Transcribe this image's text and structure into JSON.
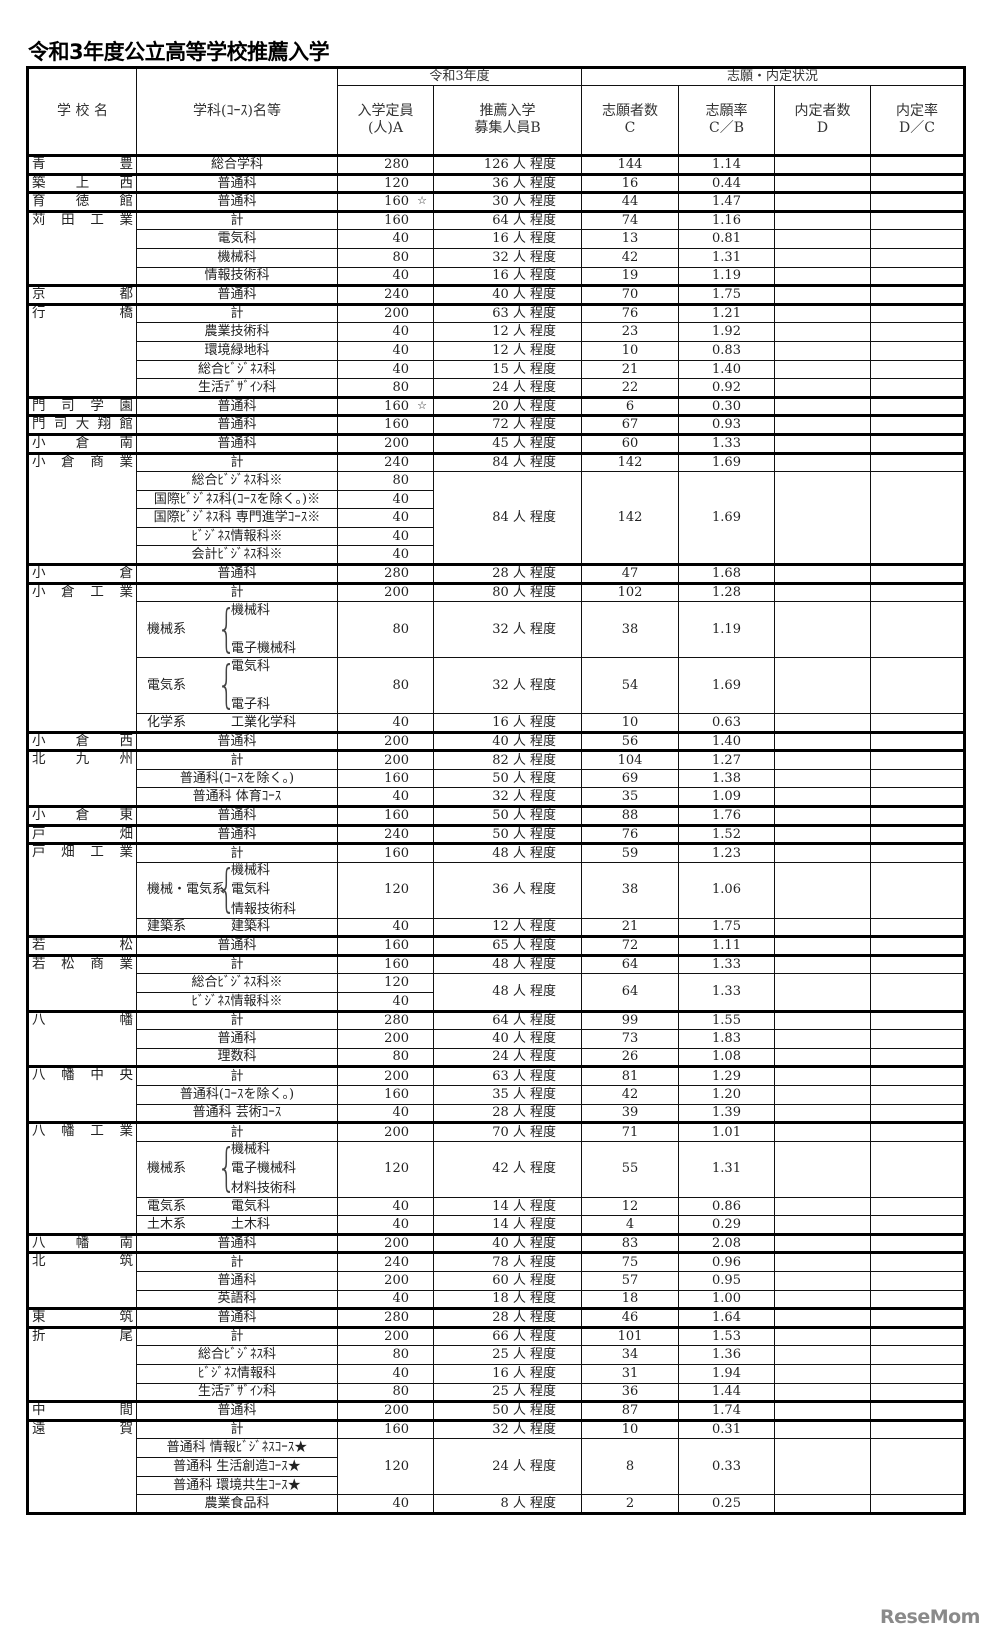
{
  "title": "令和3年度公立高等学校推薦入学",
  "header": {
    "group_year": "令和3年度",
    "group_status": "志願・内定状況",
    "school": "学 校 名",
    "dept": "学科(ｺｰｽ)名等",
    "capacity": [
      "入学定員",
      "(人)A"
    ],
    "recruit": [
      "推薦入学",
      "募集人員B"
    ],
    "applicants": [
      "志願者数",
      "C"
    ],
    "rate": [
      "志願率",
      "C／B"
    ],
    "offers": [
      "内定者数",
      "D"
    ],
    "offer_rate": [
      "内定率",
      "D／C"
    ]
  },
  "schools": [
    {
      "name": "青豊",
      "rows": [
        {
          "dept": "総合学科",
          "capacity": "280",
          "recruit": "126 人 程度",
          "applicants": "144",
          "rate": "1.14"
        }
      ]
    },
    {
      "name": "築上西",
      "rows": [
        {
          "dept": "普通科",
          "capacity": "120",
          "recruit": "36 人 程度",
          "applicants": "16",
          "rate": "0.44"
        }
      ]
    },
    {
      "name": "育徳館",
      "rows": [
        {
          "dept": "普通科",
          "capacity": "160",
          "mark": "☆",
          "recruit": "30 人 程度",
          "applicants": "44",
          "rate": "1.47"
        }
      ]
    },
    {
      "name": "苅田工業",
      "rows": [
        {
          "dept": "計",
          "capacity": "160",
          "recruit": "64 人 程度",
          "applicants": "74",
          "rate": "1.16"
        },
        {
          "dept": "電気科",
          "capacity": "40",
          "recruit": "16 人 程度",
          "applicants": "13",
          "rate": "0.81"
        },
        {
          "dept": "機械科",
          "capacity": "80",
          "recruit": "32 人 程度",
          "applicants": "42",
          "rate": "1.31"
        },
        {
          "dept": "情報技術科",
          "capacity": "40",
          "recruit": "16 人 程度",
          "applicants": "19",
          "rate": "1.19"
        }
      ]
    },
    {
      "name": "京都",
      "rows": [
        {
          "dept": "普通科",
          "capacity": "240",
          "recruit": "40 人 程度",
          "applicants": "70",
          "rate": "1.75"
        }
      ]
    },
    {
      "name": "行橋",
      "rows": [
        {
          "dept": "計",
          "capacity": "200",
          "recruit": "63 人 程度",
          "applicants": "76",
          "rate": "1.21"
        },
        {
          "dept": "農業技術科",
          "capacity": "40",
          "recruit": "12 人 程度",
          "applicants": "23",
          "rate": "1.92"
        },
        {
          "dept": "環境緑地科",
          "capacity": "40",
          "recruit": "12 人 程度",
          "applicants": "10",
          "rate": "0.83"
        },
        {
          "dept": "総合ﾋﾞｼﾞﾈｽ科",
          "capacity": "40",
          "recruit": "15 人 程度",
          "applicants": "21",
          "rate": "1.40"
        },
        {
          "dept": "生活ﾃﾞｻﾞｲﾝ科",
          "capacity": "80",
          "recruit": "24 人 程度",
          "applicants": "22",
          "rate": "0.92"
        }
      ]
    },
    {
      "name": "門司学園",
      "rows": [
        {
          "dept": "普通科",
          "capacity": "160",
          "mark": "☆",
          "recruit": "20 人 程度",
          "applicants": "6",
          "rate": "0.30"
        }
      ]
    },
    {
      "name": "門司大翔館",
      "rows": [
        {
          "dept": "普通科",
          "capacity": "160",
          "recruit": "72 人 程度",
          "applicants": "67",
          "rate": "0.93"
        }
      ]
    },
    {
      "name": "小倉南",
      "rows": [
        {
          "dept": "普通科",
          "capacity": "200",
          "recruit": "45 人 程度",
          "applicants": "60",
          "rate": "1.33"
        }
      ]
    },
    {
      "name": "小倉商業",
      "rows": [
        {
          "dept": "計",
          "capacity": "240",
          "recruit": "84 人 程度",
          "applicants": "142",
          "rate": "1.69"
        },
        {
          "merged": true,
          "depts": [
            {
              "dept": "総合ﾋﾞｼﾞﾈｽ科※",
              "capacity": "80"
            },
            {
              "dept": "国際ﾋﾞｼﾞﾈｽ科(ｺｰｽを除く。)※",
              "capacity": "40"
            },
            {
              "dept": "国際ﾋﾞｼﾞﾈｽ科 専門進学ｺｰｽ※",
              "capacity": "40"
            },
            {
              "dept": "ﾋﾞｼﾞﾈｽ情報科※",
              "capacity": "40"
            },
            {
              "dept": "会計ﾋﾞｼﾞﾈｽ科※",
              "capacity": "40"
            }
          ],
          "recruit": "84 人 程度",
          "applicants": "142",
          "rate": "1.69"
        }
      ]
    },
    {
      "name": "小倉",
      "rows": [
        {
          "dept": "普通科",
          "capacity": "280",
          "recruit": "28 人 程度",
          "applicants": "47",
          "rate": "1.68"
        }
      ]
    },
    {
      "name": "小倉工業",
      "rows": [
        {
          "dept": "計",
          "capacity": "200",
          "recruit": "80 人 程度",
          "applicants": "102",
          "rate": "1.28"
        },
        {
          "group": "機械系",
          "items": [
            "機械科",
            "電子機械科"
          ],
          "capacity": "80",
          "recruit": "32 人 程度",
          "applicants": "38",
          "rate": "1.19"
        },
        {
          "group": "電気系",
          "items": [
            "電気科",
            "電子科"
          ],
          "capacity": "80",
          "recruit": "32 人 程度",
          "applicants": "54",
          "rate": "1.69"
        },
        {
          "group": "化学系",
          "items": [
            "工業化学科"
          ],
          "capacity": "40",
          "recruit": "16 人 程度",
          "applicants": "10",
          "rate": "0.63"
        }
      ]
    },
    {
      "name": "小倉西",
      "rows": [
        {
          "dept": "普通科",
          "capacity": "200",
          "recruit": "40 人 程度",
          "applicants": "56",
          "rate": "1.40"
        }
      ]
    },
    {
      "name": "北九州",
      "rows": [
        {
          "dept": "計",
          "capacity": "200",
          "recruit": "82 人 程度",
          "applicants": "104",
          "rate": "1.27"
        },
        {
          "dept": "普通科(ｺｰｽを除く。)",
          "capacity": "160",
          "recruit": "50 人 程度",
          "applicants": "69",
          "rate": "1.38"
        },
        {
          "dept": "普通科 体育ｺｰｽ",
          "capacity": "40",
          "recruit": "32 人 程度",
          "applicants": "35",
          "rate": "1.09"
        }
      ]
    },
    {
      "name": "小倉東",
      "rows": [
        {
          "dept": "普通科",
          "capacity": "160",
          "recruit": "50 人 程度",
          "applicants": "88",
          "rate": "1.76"
        }
      ]
    },
    {
      "name": "戸畑",
      "rows": [
        {
          "dept": "普通科",
          "capacity": "240",
          "recruit": "50 人 程度",
          "applicants": "76",
          "rate": "1.52"
        }
      ]
    },
    {
      "name": "戸畑工業",
      "rows": [
        {
          "dept": "計",
          "capacity": "160",
          "recruit": "48 人 程度",
          "applicants": "59",
          "rate": "1.23"
        },
        {
          "group": "機械・電気系",
          "items": [
            "機械科",
            "電気科",
            "情報技術科"
          ],
          "capacity": "120",
          "recruit": "36 人 程度",
          "applicants": "38",
          "rate": "1.06"
        },
        {
          "group": "建築系",
          "items": [
            "建築科"
          ],
          "capacity": "40",
          "recruit": "12 人 程度",
          "applicants": "21",
          "rate": "1.75"
        }
      ]
    },
    {
      "name": "若松",
      "rows": [
        {
          "dept": "普通科",
          "capacity": "160",
          "recruit": "65 人 程度",
          "applicants": "72",
          "rate": "1.11"
        }
      ]
    },
    {
      "name": "若松商業",
      "rows": [
        {
          "dept": "計",
          "capacity": "160",
          "recruit": "48 人 程度",
          "applicants": "64",
          "rate": "1.33"
        },
        {
          "merged": true,
          "depts": [
            {
              "dept": "総合ﾋﾞｼﾞﾈｽ科※",
              "capacity": "120"
            },
            {
              "dept": "ﾋﾞｼﾞﾈｽ情報科※",
              "capacity": "40"
            }
          ],
          "recruit": "48 人 程度",
          "applicants": "64",
          "rate": "1.33"
        }
      ]
    },
    {
      "name": "八幡",
      "rows": [
        {
          "dept": "計",
          "capacity": "280",
          "recruit": "64 人 程度",
          "applicants": "99",
          "rate": "1.55"
        },
        {
          "dept": "普通科",
          "capacity": "200",
          "recruit": "40 人 程度",
          "applicants": "73",
          "rate": "1.83"
        },
        {
          "dept": "理数科",
          "capacity": "80",
          "recruit": "24 人 程度",
          "applicants": "26",
          "rate": "1.08"
        }
      ]
    },
    {
      "name": "八幡中央",
      "rows": [
        {
          "dept": "計",
          "capacity": "200",
          "recruit": "63 人 程度",
          "applicants": "81",
          "rate": "1.29"
        },
        {
          "dept": "普通科(ｺｰｽを除く。)",
          "capacity": "160",
          "recruit": "35 人 程度",
          "applicants": "42",
          "rate": "1.20"
        },
        {
          "dept": "普通科 芸術ｺｰｽ",
          "capacity": "40",
          "recruit": "28 人 程度",
          "applicants": "39",
          "rate": "1.39"
        }
      ]
    },
    {
      "name": "八幡工業",
      "rows": [
        {
          "dept": "計",
          "capacity": "200",
          "recruit": "70 人 程度",
          "applicants": "71",
          "rate": "1.01"
        },
        {
          "group": "機械系",
          "items": [
            "機械科",
            "電子機械科",
            "材料技術科"
          ],
          "capacity": "120",
          "recruit": "42 人 程度",
          "applicants": "55",
          "rate": "1.31"
        },
        {
          "group": "電気系",
          "items": [
            "電気科"
          ],
          "capacity": "40",
          "recruit": "14 人 程度",
          "applicants": "12",
          "rate": "0.86"
        },
        {
          "group": "土木系",
          "items": [
            "土木科"
          ],
          "capacity": "40",
          "recruit": "14 人 程度",
          "applicants": "4",
          "rate": "0.29"
        }
      ]
    },
    {
      "name": "八幡南",
      "rows": [
        {
          "dept": "普通科",
          "capacity": "200",
          "recruit": "40 人 程度",
          "applicants": "83",
          "rate": "2.08"
        }
      ]
    },
    {
      "name": "北筑",
      "rows": [
        {
          "dept": "計",
          "capacity": "240",
          "recruit": "78 人 程度",
          "applicants": "75",
          "rate": "0.96"
        },
        {
          "dept": "普通科",
          "capacity": "200",
          "recruit": "60 人 程度",
          "applicants": "57",
          "rate": "0.95"
        },
        {
          "dept": "英語科",
          "capacity": "40",
          "recruit": "18 人 程度",
          "applicants": "18",
          "rate": "1.00"
        }
      ]
    },
    {
      "name": "東筑",
      "rows": [
        {
          "dept": "普通科",
          "capacity": "280",
          "recruit": "28 人 程度",
          "applicants": "46",
          "rate": "1.64"
        }
      ]
    },
    {
      "name": "折尾",
      "rows": [
        {
          "dept": "計",
          "capacity": "200",
          "recruit": "66 人 程度",
          "applicants": "101",
          "rate": "1.53"
        },
        {
          "dept": "総合ﾋﾞｼﾞﾈｽ科",
          "capacity": "80",
          "recruit": "25 人 程度",
          "applicants": "34",
          "rate": "1.36"
        },
        {
          "dept": "ﾋﾞｼﾞﾈｽ情報科",
          "capacity": "40",
          "recruit": "16 人 程度",
          "applicants": "31",
          "rate": "1.94"
        },
        {
          "dept": "生活ﾃﾞｻﾞｲﾝ科",
          "capacity": "80",
          "recruit": "25 人 程度",
          "applicants": "36",
          "rate": "1.44"
        }
      ]
    },
    {
      "name": "中間",
      "rows": [
        {
          "dept": "普通科",
          "capacity": "200",
          "recruit": "50 人 程度",
          "applicants": "87",
          "rate": "1.74"
        }
      ]
    },
    {
      "name": "遠賀",
      "rows": [
        {
          "dept": "計",
          "capacity": "160",
          "recruit": "32 人 程度",
          "applicants": "10",
          "rate": "0.31"
        },
        {
          "merged": true,
          "capacity": "120",
          "depts": [
            {
              "dept": "普通科 情報ﾋﾞｼﾞﾈｽｺｰｽ★"
            },
            {
              "dept": "普通科 生活創造ｺｰｽ★"
            },
            {
              "dept": "普通科 環境共生ｺｰｽ★"
            }
          ],
          "recruit": "24 人 程度",
          "applicants": "8",
          "rate": "0.33"
        },
        {
          "dept": "農業食品科",
          "capacity": "40",
          "recruit": "8 人 程度",
          "applicants": "2",
          "rate": "0.25"
        }
      ]
    }
  ],
  "logo": "ReseMom"
}
